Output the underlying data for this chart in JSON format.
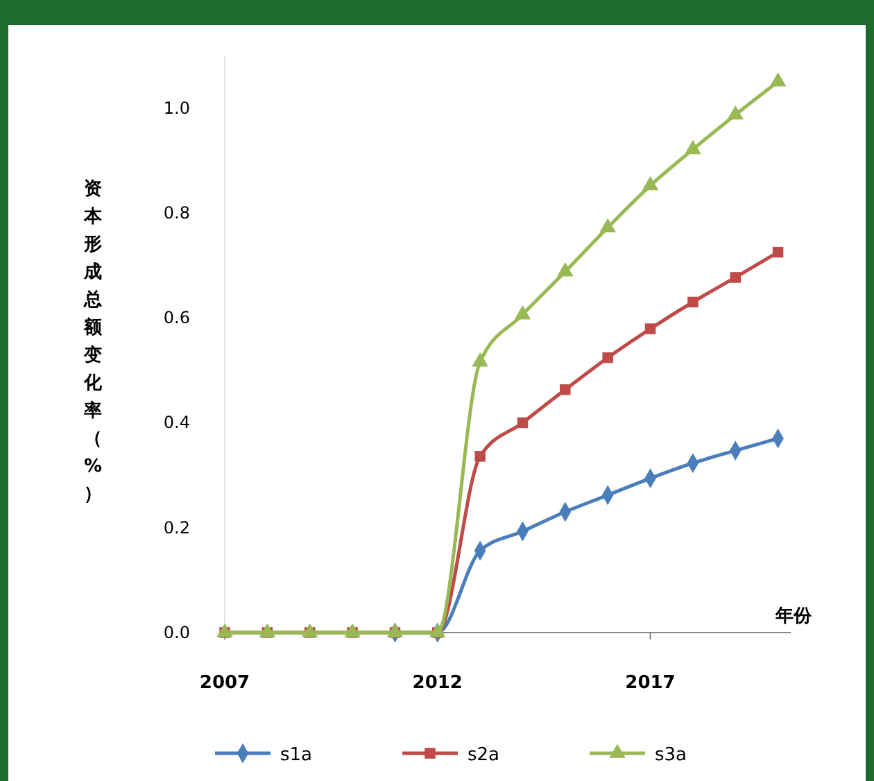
{
  "chart_data": {
    "type": "line",
    "xlabel": "年份",
    "ylabel": "资本形成总额变化率（%）",
    "x": [
      2007,
      2008,
      2009,
      2010,
      2011,
      2012,
      2013,
      2014,
      2015,
      2016,
      2017,
      2018,
      2019,
      2020
    ],
    "series": [
      {
        "name": "s1a",
        "color": "#4a7ebb",
        "marker": "diamond",
        "values": [
          null,
          null,
          null,
          null,
          0,
          0,
          0.156,
          0.193,
          0.23,
          0.262,
          0.294,
          0.323,
          0.347,
          0.37
        ]
      },
      {
        "name": "s2a",
        "color": "#be4b48",
        "marker": "square",
        "values": [
          0,
          0,
          0,
          0,
          0,
          0,
          0.336,
          0.4,
          0.463,
          0.524,
          0.579,
          0.63,
          0.677,
          0.725
        ]
      },
      {
        "name": "s3a",
        "color": "#98b954",
        "marker": "triangle",
        "values": [
          0,
          0,
          0,
          0,
          0,
          0,
          0.516,
          0.606,
          0.688,
          0.772,
          0.852,
          0.921,
          0.987,
          1.05
        ]
      }
    ],
    "xlim": [
      2007,
      2020.3
    ],
    "xticks": [
      2007,
      2012,
      2017
    ],
    "ylim": [
      0,
      1.1
    ],
    "yticks": [
      {
        "value": 0,
        "label": "0.0"
      },
      {
        "value": 0.2,
        "label": "0.2"
      },
      {
        "value": 0.4,
        "label": "0.4"
      },
      {
        "value": 0.6,
        "label": "0.6"
      },
      {
        "value": 0.8,
        "label": "0.8"
      },
      {
        "value": 1,
        "label": "1.0"
      }
    ],
    "grid": false,
    "legend": "bottom",
    "line_style": "solid"
  }
}
